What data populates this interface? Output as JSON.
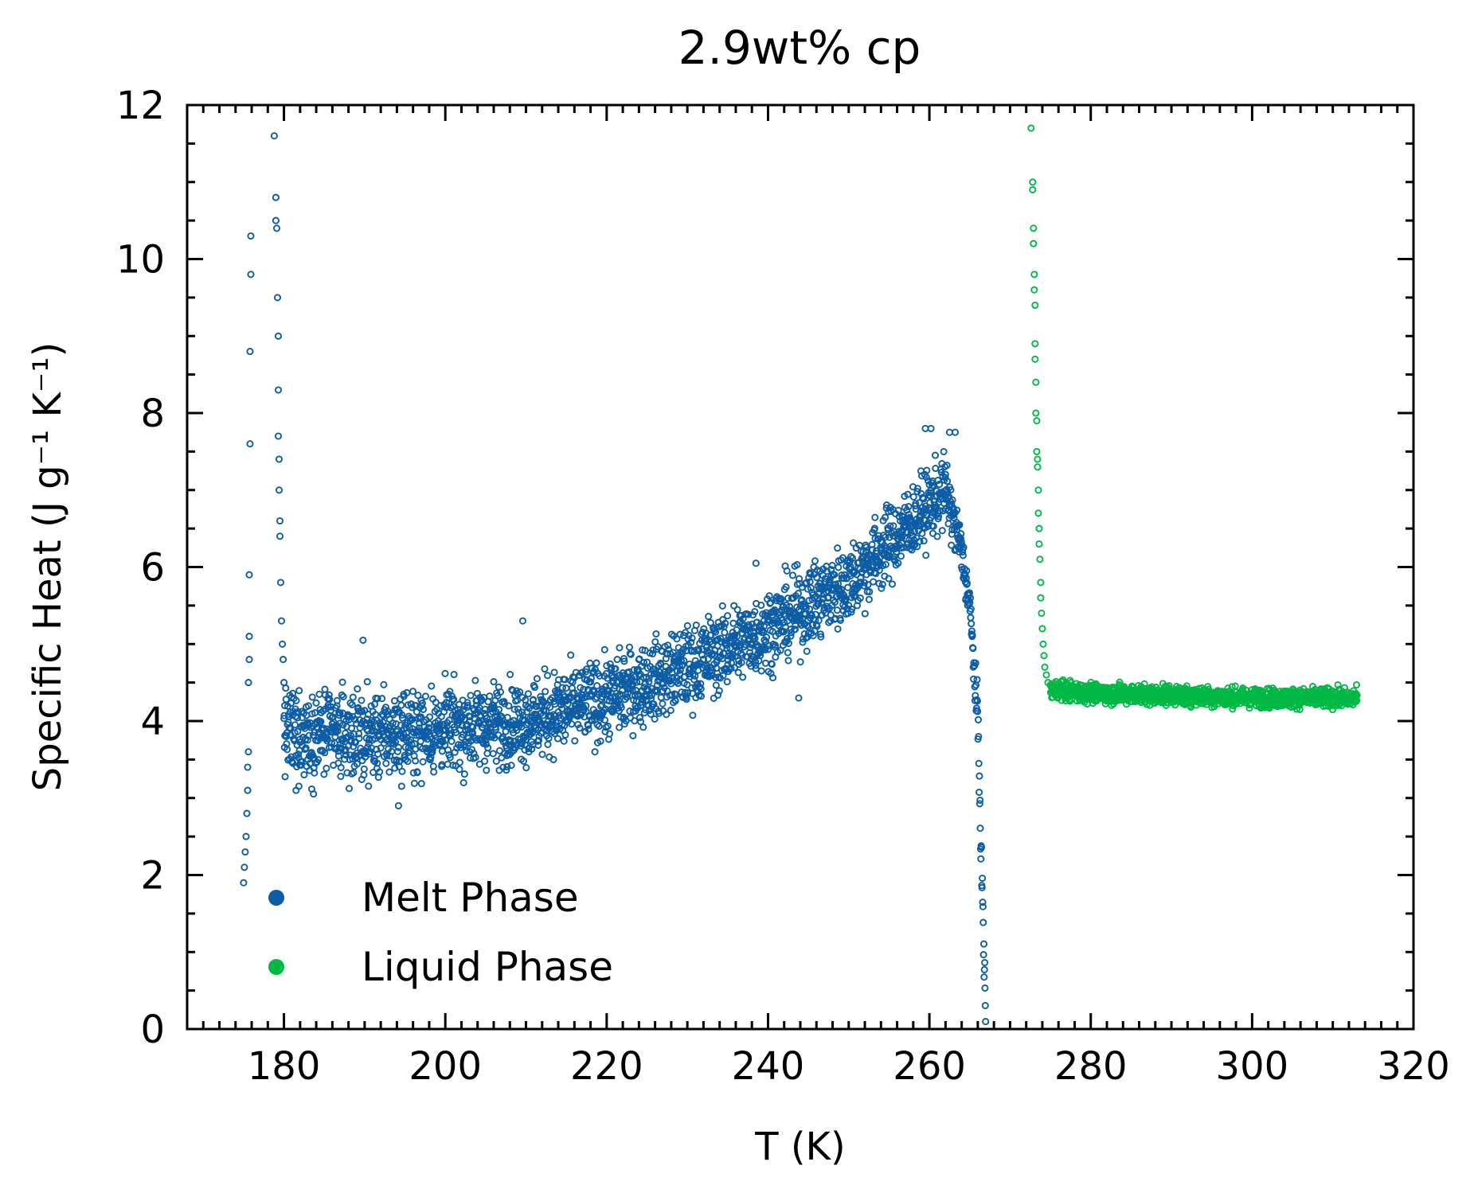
{
  "chart_data": {
    "type": "scatter",
    "title": "2.9wt% cp",
    "xlabel": "T (K)",
    "ylabel": "Specific Heat (J g⁻¹ K⁻¹)",
    "xlim": [
      168,
      320
    ],
    "ylim": [
      0,
      12
    ],
    "xticks": [
      180,
      200,
      220,
      240,
      260,
      280,
      300,
      320
    ],
    "yticks": [
      0,
      2,
      4,
      6,
      8,
      10,
      12
    ],
    "x_minor_step": 2,
    "y_minor_step": 0.5,
    "tick_direction": "in",
    "mirror_ticks": true,
    "grid": false,
    "legend": "lower-left",
    "marker": "open-circle",
    "series": [
      {
        "name": "Melt Phase",
        "color": "#0c5da5",
        "points": [
          [
            175.0,
            1.9
          ],
          [
            175.1,
            2.1
          ],
          [
            175.2,
            2.3
          ],
          [
            175.3,
            2.5
          ],
          [
            175.4,
            2.8
          ],
          [
            175.5,
            3.1
          ],
          [
            175.5,
            3.4
          ],
          [
            175.6,
            3.6
          ],
          [
            175.6,
            4.5
          ],
          [
            175.7,
            4.8
          ],
          [
            175.7,
            5.1
          ],
          [
            175.7,
            5.9
          ],
          [
            175.8,
            7.6
          ],
          [
            175.8,
            8.8
          ],
          [
            175.9,
            9.8
          ],
          [
            175.9,
            10.3
          ],
          [
            178.8,
            11.6
          ],
          [
            179.0,
            10.8
          ],
          [
            179.0,
            10.5
          ],
          [
            179.1,
            10.4
          ],
          [
            179.2,
            9.5
          ],
          [
            179.3,
            9.0
          ],
          [
            179.3,
            8.3
          ],
          [
            179.3,
            7.7
          ],
          [
            179.4,
            7.4
          ],
          [
            179.4,
            7.0
          ],
          [
            179.5,
            6.6
          ],
          [
            179.5,
            6.4
          ],
          [
            179.6,
            5.8
          ],
          [
            179.7,
            5.3
          ],
          [
            179.8,
            5.0
          ],
          [
            179.9,
            4.8
          ],
          [
            180.0,
            4.5
          ],
          [
            180.1,
            4.2
          ]
        ],
        "trend": [
          [
            180,
            3.85
          ],
          [
            190,
            3.8
          ],
          [
            200,
            3.9
          ],
          [
            210,
            4.0
          ],
          [
            220,
            4.3
          ],
          [
            230,
            4.7
          ],
          [
            240,
            5.2
          ],
          [
            250,
            5.8
          ],
          [
            258,
            6.6
          ],
          [
            262,
            7.0
          ],
          [
            264,
            6.2
          ],
          [
            265,
            5.5
          ],
          [
            266,
            4.0
          ],
          [
            266.5,
            2.0
          ],
          [
            267,
            0.0
          ]
        ],
        "band": [
          [
            180,
            0.55
          ],
          [
            220,
            0.5
          ],
          [
            250,
            0.5
          ],
          [
            262,
            0.45
          ],
          [
            264,
            0.3
          ]
        ],
        "outliers": [
          [
            181.5,
            3.1
          ],
          [
            189.8,
            5.05
          ],
          [
            194.2,
            2.9
          ],
          [
            209.6,
            5.3
          ],
          [
            238.5,
            6.05
          ],
          [
            243.8,
            4.3
          ],
          [
            259.5,
            7.8
          ],
          [
            260.2,
            7.8
          ],
          [
            262.5,
            7.75
          ],
          [
            263.2,
            7.75
          ]
        ]
      },
      {
        "name": "Liquid Phase",
        "color": "#00b945",
        "points": [
          [
            272.6,
            11.7
          ],
          [
            272.8,
            11.0
          ],
          [
            272.8,
            10.9
          ],
          [
            272.9,
            10.4
          ],
          [
            272.9,
            10.2
          ],
          [
            273.0,
            9.8
          ],
          [
            273.0,
            9.6
          ],
          [
            273.1,
            9.4
          ],
          [
            273.1,
            8.9
          ],
          [
            273.1,
            8.7
          ],
          [
            273.2,
            8.4
          ],
          [
            273.2,
            8.0
          ],
          [
            273.3,
            7.9
          ],
          [
            273.3,
            7.5
          ],
          [
            273.4,
            7.4
          ],
          [
            273.4,
            7.3
          ],
          [
            273.5,
            7.0
          ],
          [
            273.5,
            6.7
          ],
          [
            273.6,
            6.5
          ],
          [
            273.6,
            6.3
          ],
          [
            273.7,
            6.1
          ],
          [
            273.8,
            5.8
          ],
          [
            273.8,
            5.6
          ],
          [
            273.9,
            5.4
          ],
          [
            274.0,
            5.2
          ],
          [
            274.1,
            5.0
          ],
          [
            274.2,
            4.85
          ],
          [
            274.3,
            4.7
          ],
          [
            274.5,
            4.6
          ],
          [
            274.7,
            4.5
          ]
        ],
        "trend": [
          [
            275,
            4.42
          ],
          [
            280,
            4.36
          ],
          [
            290,
            4.34
          ],
          [
            300,
            4.3
          ],
          [
            313,
            4.3
          ]
        ],
        "band": [
          [
            275,
            0.12
          ],
          [
            313,
            0.12
          ]
        ],
        "outliers": []
      }
    ]
  }
}
